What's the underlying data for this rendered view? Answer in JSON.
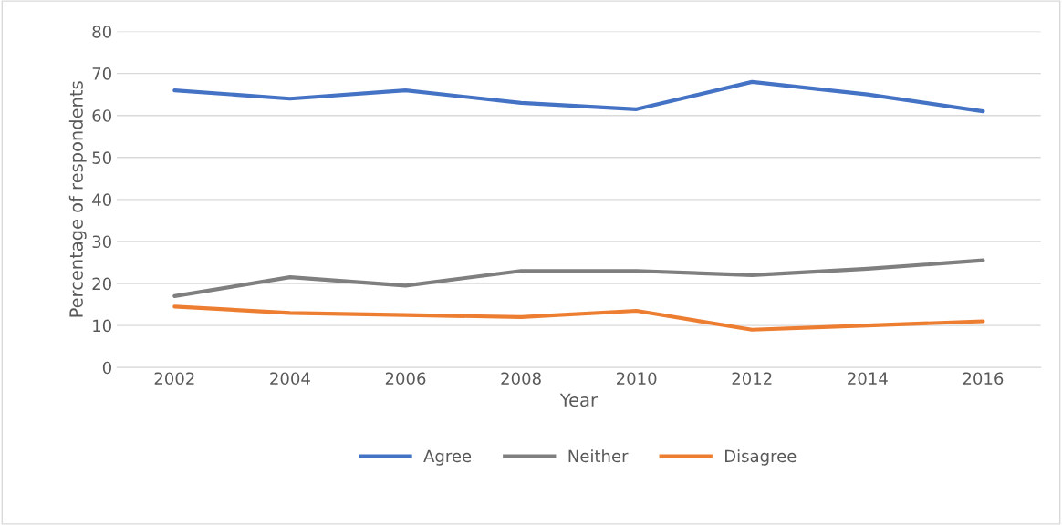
{
  "chart_data": {
    "type": "line",
    "xlabel": "Year",
    "ylabel": "Percentage of respondents",
    "categories": [
      "2002",
      "2004",
      "2006",
      "2008",
      "2010",
      "2012",
      "2014",
      "2016"
    ],
    "series": [
      {
        "name": "Agree",
        "color": "#4472c4",
        "values": [
          66,
          64,
          66,
          63,
          61.5,
          68,
          65,
          61
        ]
      },
      {
        "name": "Neither",
        "color": "#7f7f7f",
        "values": [
          17,
          21.5,
          19.5,
          23,
          23,
          22,
          23.5,
          25.5
        ]
      },
      {
        "name": "Disagree",
        "color": "#ed7d31",
        "values": [
          14.5,
          13,
          12.5,
          12,
          13.5,
          9,
          10,
          11
        ]
      }
    ],
    "ylim": [
      0,
      80
    ],
    "yticks": [
      0,
      10,
      20,
      30,
      40,
      50,
      60,
      70,
      80
    ],
    "grid": "y",
    "legend": "bottom",
    "line_style": "solid",
    "marker": "none"
  }
}
